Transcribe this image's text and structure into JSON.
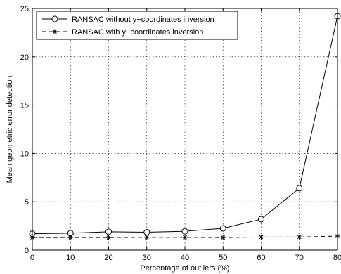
{
  "chart_data": {
    "type": "line",
    "title": "",
    "xlabel": "Percentage of outliers (%)",
    "ylabel": "Mean geometric error detection",
    "xlim": [
      0,
      80
    ],
    "ylim": [
      0,
      25
    ],
    "xticks": [
      0,
      10,
      20,
      30,
      40,
      50,
      60,
      70,
      80
    ],
    "yticks": [
      0,
      5,
      10,
      15,
      20,
      25
    ],
    "grid": true,
    "legend_position": "top-left",
    "x": [
      0,
      10,
      20,
      30,
      40,
      50,
      60,
      70,
      80
    ],
    "series": [
      {
        "name": "RANSAC without y−coordinates inversion",
        "values": [
          1.7,
          1.75,
          1.9,
          1.85,
          1.95,
          2.25,
          3.2,
          6.4,
          24.2
        ],
        "line_style": "solid",
        "marker": "circle",
        "color": "#000000"
      },
      {
        "name": "RANSAC with y−coordinates inversion",
        "values": [
          1.3,
          1.3,
          1.3,
          1.32,
          1.32,
          1.3,
          1.35,
          1.35,
          1.45
        ],
        "line_style": "dashed",
        "marker": "asterisk",
        "color": "#000000"
      }
    ]
  }
}
